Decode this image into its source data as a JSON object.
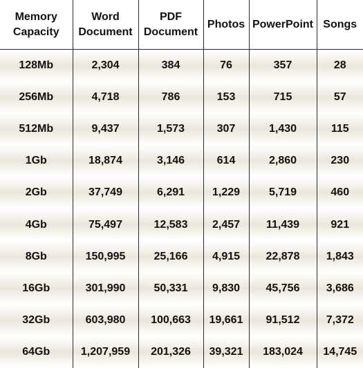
{
  "table": {
    "headers": [
      {
        "line1": "Memory",
        "line2": "Capacity"
      },
      {
        "line1": "Word",
        "line2": "Document"
      },
      {
        "line1": "PDF",
        "line2": "Document"
      },
      {
        "line1": "Photos",
        "line2": ""
      },
      {
        "line1": "PowerPoint",
        "line2": ""
      },
      {
        "line1": "Songs",
        "line2": ""
      }
    ],
    "rows": [
      [
        "128Mb",
        "2,304",
        "384",
        "76",
        "357",
        "28"
      ],
      [
        "256Mb",
        "4,718",
        "786",
        "153",
        "715",
        "57"
      ],
      [
        "512Mb",
        "9,437",
        "1,573",
        "307",
        "1,430",
        "115"
      ],
      [
        "1Gb",
        "18,874",
        "3,146",
        "614",
        "2,860",
        "230"
      ],
      [
        "2Gb",
        "37,749",
        "6,291",
        "1,229",
        "5,719",
        "460"
      ],
      [
        "4Gb",
        "75,497",
        "12,583",
        "2,457",
        "11,439",
        "921"
      ],
      [
        "8Gb",
        "150,995",
        "25,166",
        "4,915",
        "22,878",
        "1,843"
      ],
      [
        "16Gb",
        "301,990",
        "50,331",
        "9,830",
        "45,756",
        "3,686"
      ],
      [
        "32Gb",
        "603,980",
        "100,663",
        "19,661",
        "91,512",
        "7,372"
      ],
      [
        "64Gb",
        "1,207,959",
        "201,326",
        "39,321",
        "183,024",
        "14,745"
      ]
    ]
  }
}
